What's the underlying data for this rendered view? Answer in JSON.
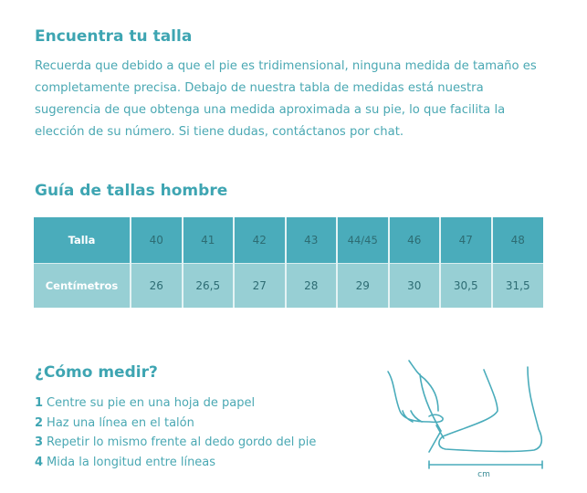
{
  "title": "Encuentra tu talla",
  "intro": "Recuerda que debido a que el pie es tridimensional, ninguna medida de tamaño es completamente precisa. Debajo de nuestra tabla de medidas está nuestra sugerencia de que obtenga una medida aproximada a su pie, lo que facilita la elección de su número. Si tiene dudas, contáctanos por chat.",
  "guide_title": "Guía de tallas hombre",
  "table": {
    "row1_label": "Talla",
    "sizes": [
      "40",
      "41",
      "42",
      "43",
      "44/45",
      "46",
      "47",
      "48"
    ],
    "size_44a": "44",
    "size_44b": "45",
    "row2_label": "Centímetros",
    "cm": [
      "26",
      "26,5",
      "27",
      "28",
      "29",
      "30",
      "30,5",
      "31,5"
    ]
  },
  "measure_title": "¿Cómo medir?",
  "steps": [
    {
      "n": "1",
      "text": "Centre su pie en una hoja de papel"
    },
    {
      "n": "2",
      "text": "Haz una línea en el talón"
    },
    {
      "n": "3",
      "text": "Repetir lo mismo frente al dedo gordo del pie"
    },
    {
      "n": "4",
      "text": "Mida la longitud entre líneas"
    }
  ],
  "illustration_unit": "cm",
  "colors": {
    "accent": "#3ea5b2",
    "header_row": "#4aacbb",
    "cm_row": "#97cfd4"
  }
}
